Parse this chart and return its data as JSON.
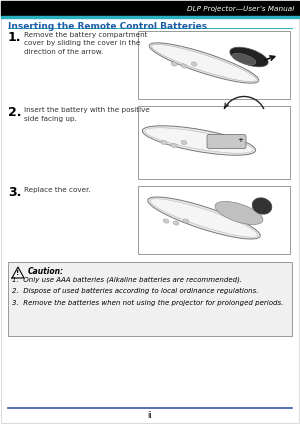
{
  "bg_color": "#ffffff",
  "header_bar_color": "#29afc0",
  "header_text": "DLP Projector—User’s Manual",
  "header_text_color": "#3366aa",
  "title": "Inserting the Remote Control Batteries",
  "title_color": "#1a5fa8",
  "step_num_color": "#000000",
  "step_text_color": "#333333",
  "steps": [
    {
      "num": "1.",
      "text": "Remove the battery compartment\ncover by sliding the cover in the\ndirection of the arrow."
    },
    {
      "num": "2.",
      "text": "Insert the battery with the positive\nside facing up."
    },
    {
      "num": "3.",
      "text": "Replace the cover."
    }
  ],
  "caution_title": "Caution:",
  "caution_items": [
    "1.  Only use AAA batteries (Alkaline batteries are recommended).",
    "2.  Dispose of used batteries according to local ordinance regulations.",
    "3.  Remove the batteries when not using the projector for prolonged periods."
  ],
  "footer_line_color": "#3355aa",
  "footer_text": "ii",
  "img_box_color": "#ffffff",
  "img_border_color": "#999999",
  "caution_box_bg": "#f0f0f0",
  "caution_box_border": "#999999",
  "page_border_color": "#cccccc",
  "header_bg": "#000000"
}
